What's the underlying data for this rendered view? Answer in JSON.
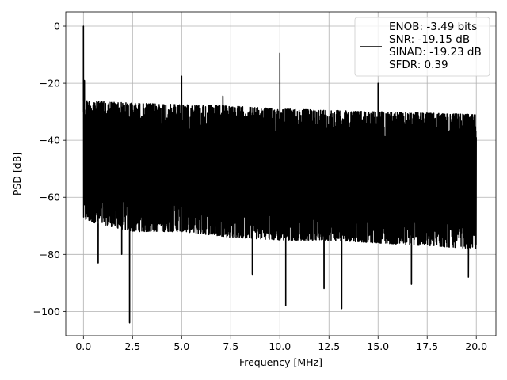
{
  "chart_data": {
    "type": "line",
    "title": "",
    "xlabel": "Frequency [MHz]",
    "ylabel": "PSD [dB]",
    "xlim": [
      -0.9,
      21.0
    ],
    "ylim": [
      -108.5,
      5
    ],
    "xticks": [
      0.0,
      2.5,
      5.0,
      7.5,
      10.0,
      12.5,
      15.0,
      17.5,
      20.0
    ],
    "xtick_labels": [
      "0.0",
      "2.5",
      "5.0",
      "7.5",
      "10.0",
      "12.5",
      "15.0",
      "17.5",
      "20.0"
    ],
    "yticks": [
      0,
      -20,
      -40,
      -60,
      -80,
      -100
    ],
    "ytick_labels": [
      "0",
      "−20",
      "−40",
      "−60",
      "−80",
      "−100"
    ],
    "grid": true,
    "legend_position": "top-right",
    "color": "#000000",
    "series": [
      {
        "name": "ENOB: -3.49 bits\nSNR: -19.15 dB\nSINAD: -19.23 dB\nSFDR: 0.39",
        "legend_lines": [
          "ENOB: -3.49 bits",
          "SNR: -19.15 dB",
          "SINAD: -19.23 dB",
          "SFDR: 0.39"
        ],
        "noise_floor": {
          "x": [
            0.0,
            2.5,
            5.0,
            7.5,
            10.0,
            12.5,
            15.0,
            17.5,
            20.0
          ],
          "upper": [
            -26,
            -27,
            -27.5,
            -28,
            -29,
            -29.5,
            -30,
            -30.5,
            -31
          ],
          "lower": [
            -68,
            -72,
            -72,
            -74,
            -75,
            -75,
            -76,
            -77,
            -78
          ]
        },
        "peaks": [
          {
            "x": 0.0,
            "y": 0
          },
          {
            "x": 0.05,
            "y": -19
          },
          {
            "x": 5.0,
            "y": -17.5
          },
          {
            "x": 7.1,
            "y": -24.5
          },
          {
            "x": 10.0,
            "y": -9.5
          },
          {
            "x": 15.0,
            "y": -20
          }
        ],
        "dips": [
          {
            "x": 0.75,
            "y": -83
          },
          {
            "x": 1.95,
            "y": -80
          },
          {
            "x": 2.35,
            "y": -104
          },
          {
            "x": 8.6,
            "y": -87
          },
          {
            "x": 10.3,
            "y": -98
          },
          {
            "x": 12.25,
            "y": -92
          },
          {
            "x": 13.15,
            "y": -99
          },
          {
            "x": 16.7,
            "y": -90.5
          },
          {
            "x": 19.6,
            "y": -88
          }
        ]
      }
    ]
  }
}
